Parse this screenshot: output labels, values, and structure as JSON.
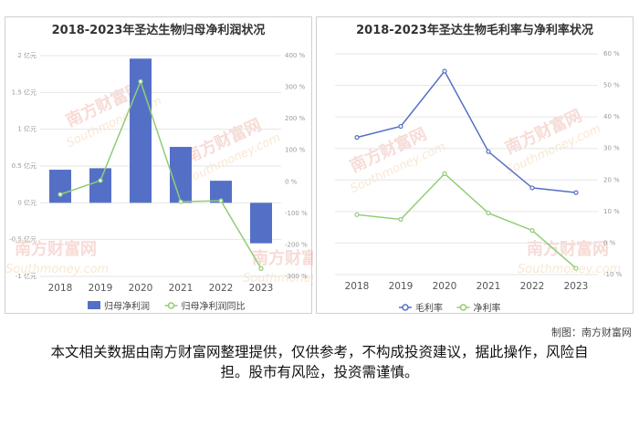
{
  "watermark": {
    "brand": "南方财富网",
    "site": "Southmoney.com"
  },
  "chart_data": [
    {
      "type": "bar",
      "title": "2018-2023年圣达生物归母净利润状况",
      "categories": [
        "2018",
        "2019",
        "2020",
        "2021",
        "2022",
        "2023"
      ],
      "series": [
        {
          "name": "归母净利润",
          "kind": "bar",
          "axis": "left",
          "color": "#5470c6",
          "values": [
            0.45,
            0.47,
            1.96,
            0.76,
            0.3,
            -0.55
          ]
        },
        {
          "name": "归母净利润同比",
          "kind": "line",
          "axis": "right",
          "color": "#91cc75",
          "values": [
            -40,
            4,
            318,
            -63,
            -60,
            -275
          ]
        }
      ],
      "left_axis": {
        "ticks": [
          "2 亿元",
          "1.5 亿元",
          "1 亿元",
          "0.5 亿元",
          "0 亿元",
          "-0.5 亿元",
          "-1 亿元"
        ],
        "ylim": [
          -1,
          2
        ]
      },
      "right_axis": {
        "ticks": [
          "400 %",
          "300 %",
          "200 %",
          "100 %",
          "0 %",
          "-100 %",
          "-200 %",
          "-300 %"
        ],
        "ylim": [
          -300,
          400
        ]
      },
      "grid": true,
      "legend": "bottom"
    },
    {
      "type": "line",
      "title": "2018-2023年圣达生物毛利率与净利率状况",
      "categories": [
        "2018",
        "2019",
        "2020",
        "2021",
        "2022",
        "2023"
      ],
      "series": [
        {
          "name": "毛利率",
          "color": "#5470c6",
          "values": [
            33.5,
            37,
            54.5,
            29,
            17.5,
            16
          ]
        },
        {
          "name": "净利率",
          "color": "#91cc75",
          "values": [
            9,
            7.5,
            22,
            9.5,
            4,
            -8
          ]
        }
      ],
      "right_axis": {
        "ticks": [
          "60 %",
          "50 %",
          "40 %",
          "30 %",
          "20 %",
          "10 %",
          "0 %",
          "-10 %"
        ],
        "ylim": [
          -10,
          60
        ]
      },
      "grid": true,
      "legend": "bottom"
    }
  ],
  "credit": "制图：南方财富网",
  "disclaimer": "本文相关数据由南方财富网整理提供，仅供参考，不构成投资建议，据此操作，风险自担。股市有风险，投资需谨慎。"
}
